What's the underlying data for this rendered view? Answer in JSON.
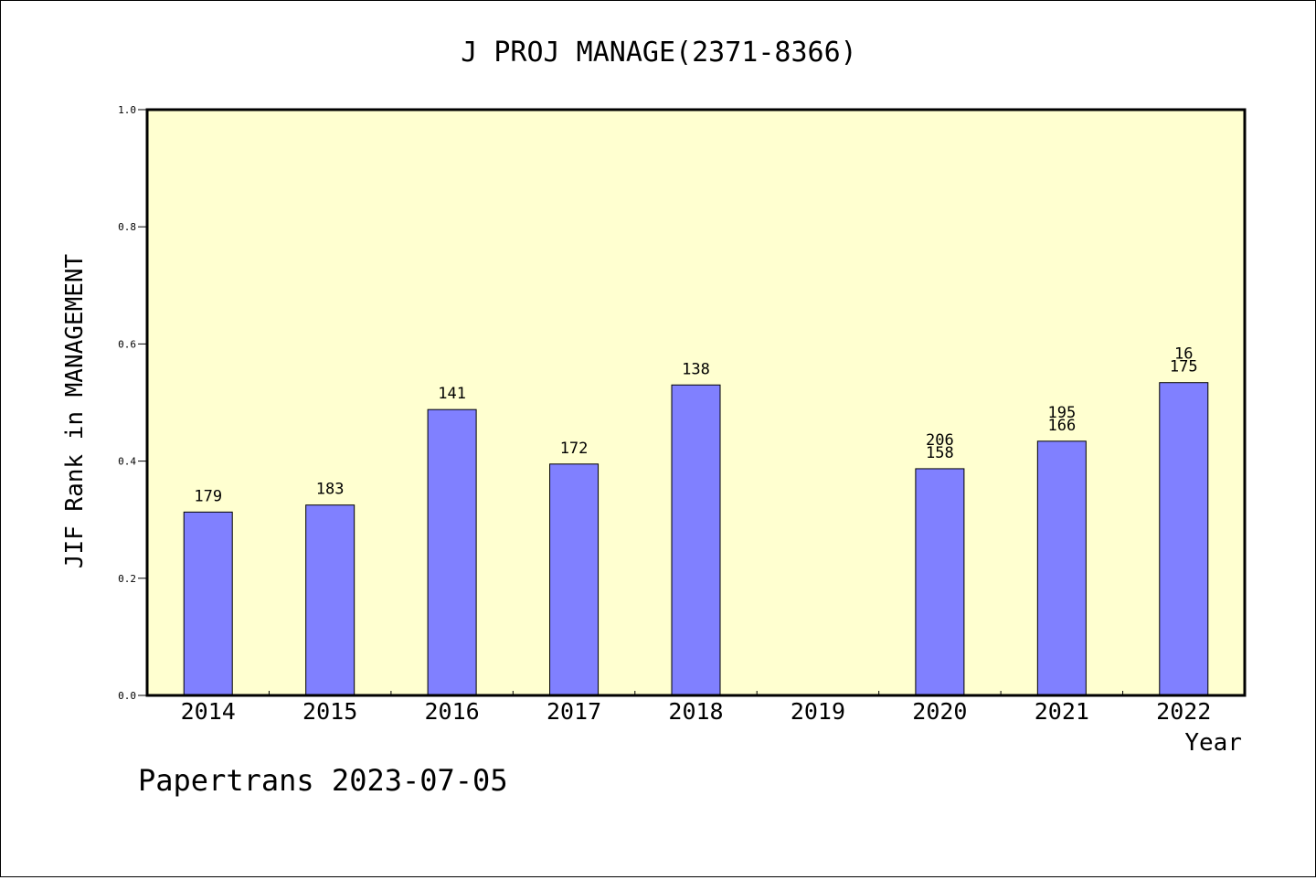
{
  "chart_data": {
    "type": "bar",
    "title": "J PROJ MANAGE(2371-8366)",
    "xlabel": "Year",
    "ylabel": "JIF Rank in MANAGEMENT",
    "ylim": [
      0,
      1.0
    ],
    "yticks": [
      "0.0",
      "0.2",
      "0.4",
      "0.6",
      "0.8",
      "1.0"
    ],
    "categories": [
      "2014",
      "2015",
      "2016",
      "2017",
      "2018",
      "2019",
      "2020",
      "2021",
      "2022"
    ],
    "values": [
      0.313,
      0.325,
      0.488,
      0.395,
      0.53,
      null,
      0.387,
      0.434,
      0.534
    ],
    "bar_labels": [
      [
        "179"
      ],
      [
        "183"
      ],
      [
        "141"
      ],
      [
        "172"
      ],
      [
        "138"
      ],
      [],
      [
        "206",
        "158"
      ],
      [
        "195",
        "166"
      ],
      [
        "16",
        "175"
      ]
    ],
    "grid": false,
    "colors": {
      "plot_bg": "#ffffd0",
      "bar": "#8080ff",
      "edge": "#000000"
    }
  },
  "footer": "Papertrans 2023-07-05"
}
